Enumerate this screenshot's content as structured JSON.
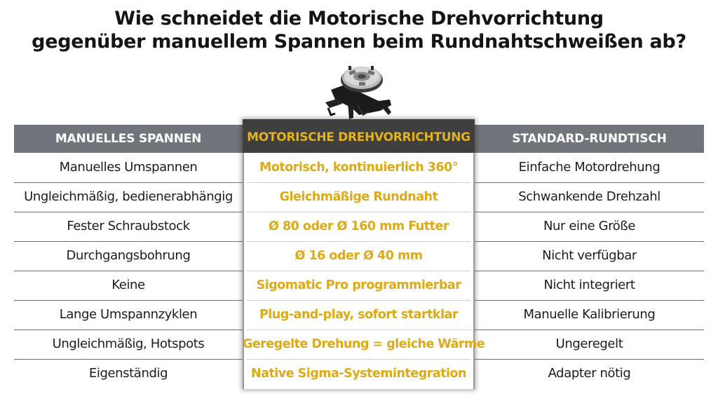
{
  "title": {
    "line1": "Wie schneidet die Motorische Drehvorrichtung",
    "line2": "gegenüber manuellem Spannen beim Rundnahtschweißen ab?"
  },
  "image": {
    "icon": "rotary-chuck-positioner-icon"
  },
  "table": {
    "headers": [
      "MANUELLES SPANNEN",
      "MOTORISCHE DREHVORRICHTUNG",
      "STANDARD-RUNDTISCH"
    ],
    "rows": [
      [
        "Manuelles Umspannen",
        "Motorisch, kontinuierlich 360°",
        "Einfache Motordrehung"
      ],
      [
        "Ungleichmäßig, bedienerabhängig",
        "Gleichmäßige Rundnaht",
        "Schwankende Drehzahl"
      ],
      [
        "Fester Schraubstock",
        "Ø 80 oder Ø 160 mm Futter",
        "Nur eine Größe"
      ],
      [
        "Durchgangsbohrung",
        "Ø 16 oder Ø 40 mm",
        "Nicht verfügbar"
      ],
      [
        "Keine",
        "Sigomatic Pro programmierbar",
        "Nicht integriert"
      ],
      [
        "Lange Umspannzyklen",
        "Plug-and-play, sofort startklar",
        "Manuelle Kalibrierung"
      ],
      [
        "Ungleichmäßig, Hotspots",
        "Geregelte Drehung = gleiche Wärme",
        "Ungeregelt"
      ],
      [
        "Eigenständig",
        "Native Sigma-Systemintegration",
        "Adapter nötig"
      ]
    ]
  },
  "colors": {
    "header_gray": "#70757c",
    "highlight_header": "#3f3f3f",
    "highlight_text": "#deaa14"
  }
}
